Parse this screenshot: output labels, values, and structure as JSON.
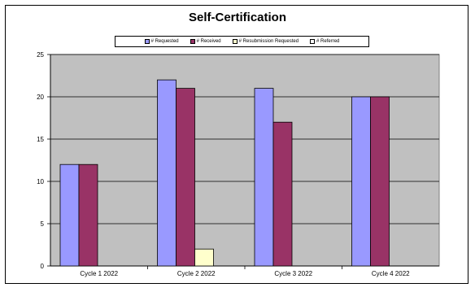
{
  "chart_data": {
    "type": "bar",
    "title": "Self-Certification",
    "categories": [
      "Cycle 1 2022",
      "Cycle 2 2022",
      "Cycle 3 2022",
      "Cycle 4 2022"
    ],
    "series": [
      {
        "name": "# Requested",
        "values": [
          12,
          22,
          21,
          20
        ],
        "color": "#9999ff"
      },
      {
        "name": "# Received",
        "values": [
          12,
          21,
          17,
          20
        ],
        "color": "#993366"
      },
      {
        "name": "# Resubmission Requested",
        "values": [
          0,
          2,
          0,
          0
        ],
        "color": "#ffffcc"
      },
      {
        "name": "# Referred",
        "values": [
          0,
          0,
          0,
          0
        ],
        "color": "#ffffff"
      }
    ],
    "yticks": [
      0,
      5,
      10,
      15,
      20,
      25
    ],
    "ylim": [
      0,
      25
    ],
    "xlabel": "",
    "ylabel": "",
    "grid": true,
    "plot_background": "#c0c0c0",
    "legend_position": "top"
  }
}
